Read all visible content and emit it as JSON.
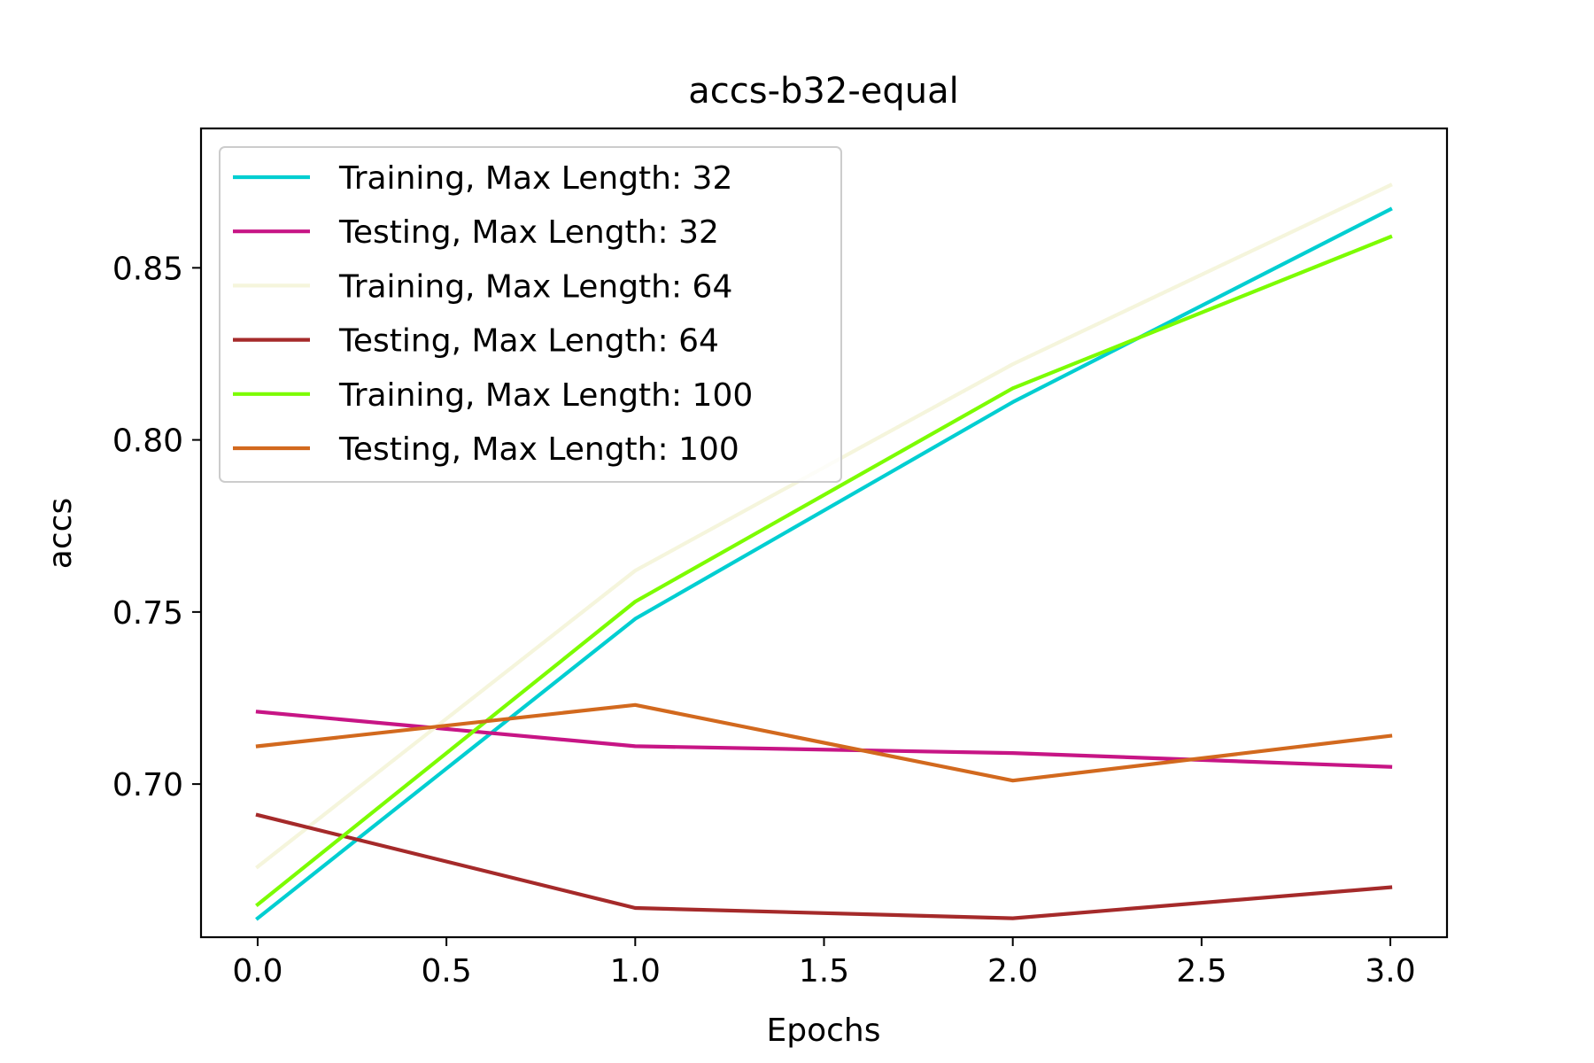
{
  "chart_data": {
    "type": "line",
    "title": "accs-b32-equal",
    "xlabel": "Epochs",
    "ylabel": "accs",
    "x": [
      0,
      1,
      2,
      3
    ],
    "xlim": [
      -0.15,
      3.15
    ],
    "ylim": [
      0.6555,
      0.8905
    ],
    "xticks": [
      0.0,
      0.5,
      1.0,
      1.5,
      2.0,
      2.5,
      3.0
    ],
    "xtick_labels": [
      "0.0",
      "0.5",
      "1.0",
      "1.5",
      "2.0",
      "2.5",
      "3.0"
    ],
    "yticks": [
      0.7,
      0.75,
      0.8,
      0.85
    ],
    "ytick_labels": [
      "0.70",
      "0.75",
      "0.80",
      "0.85"
    ],
    "grid": false,
    "legend_position": "upper-left",
    "series": [
      {
        "name": "Training, Max Length: 32",
        "color": "#00ced1",
        "values": [
          0.661,
          0.748,
          0.811,
          0.867
        ]
      },
      {
        "name": "Testing, Max Length: 32",
        "color": "#c71585",
        "values": [
          0.721,
          0.711,
          0.709,
          0.705
        ]
      },
      {
        "name": "Training, Max Length: 64",
        "color": "#f5f5dc",
        "values": [
          0.676,
          0.762,
          0.822,
          0.874
        ]
      },
      {
        "name": "Testing, Max Length: 64",
        "color": "#a52a2a",
        "values": [
          0.691,
          0.664,
          0.661,
          0.67
        ]
      },
      {
        "name": "Training, Max Length: 100",
        "color": "#7cfc00",
        "values": [
          0.665,
          0.753,
          0.815,
          0.859
        ]
      },
      {
        "name": "Testing, Max Length: 100",
        "color": "#d2691e",
        "values": [
          0.711,
          0.723,
          0.701,
          0.714
        ]
      }
    ]
  }
}
